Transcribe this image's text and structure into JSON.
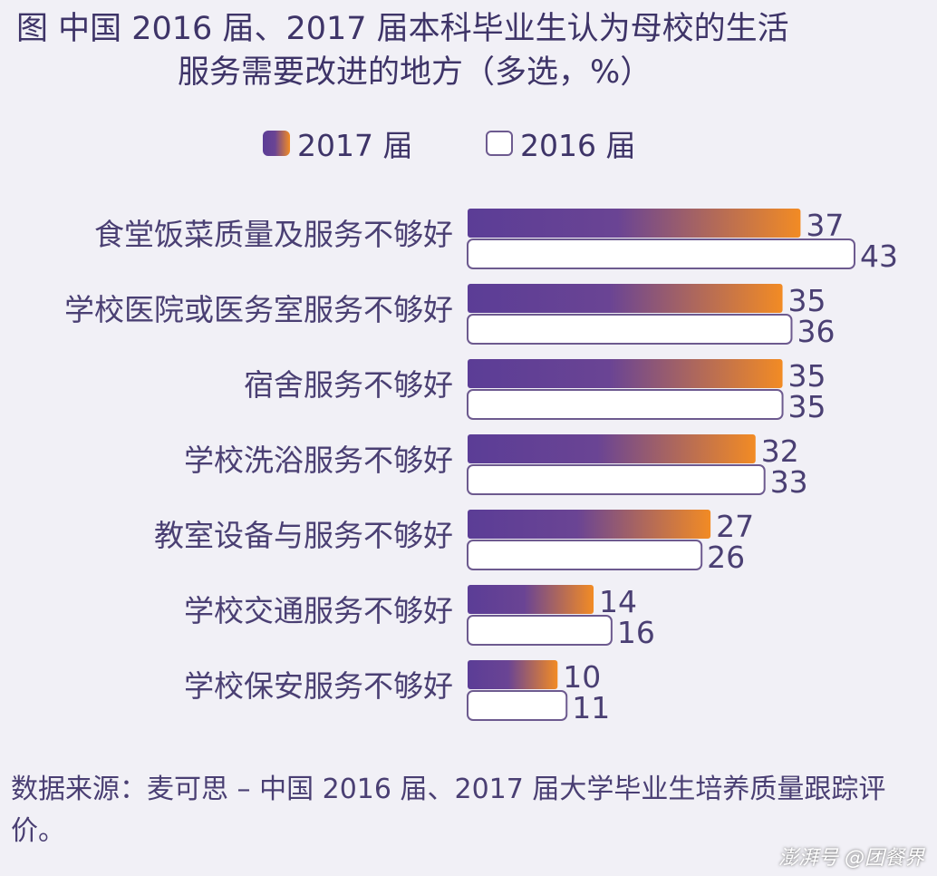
{
  "title_line1": "图  中国 2016 届、2017 届本科毕业生认为母校的生活",
  "title_line2": "服务需要改进的地方（多选，%）",
  "legend": [
    {
      "label": "2017 届"
    },
    {
      "label": "2016 届"
    }
  ],
  "colors": {
    "bar2017_start": "#5b3d96",
    "bar2017_end": "#f28b24",
    "bar2016_fill": "#ffffff",
    "bar2016_stroke": "#6d5a8f",
    "text": "#4a3f73"
  },
  "chart_data": {
    "type": "bar",
    "orientation": "horizontal",
    "categories": [
      "食堂饭菜质量及服务不够好",
      "学校医院或医务室服务不够好",
      "宿舍服务不够好",
      "学校洗浴服务不够好",
      "教室设备与服务不够好",
      "学校交通服务不够好",
      "学校保安服务不够好"
    ],
    "series": [
      {
        "name": "2017 届",
        "values": [
          37,
          35,
          35,
          32,
          27,
          14,
          10
        ]
      },
      {
        "name": "2016 届",
        "values": [
          43,
          36,
          35,
          33,
          26,
          16,
          11
        ]
      }
    ],
    "unit": "%",
    "data_labels": true,
    "grid": false,
    "legend_position": "top-center"
  },
  "source": "数据来源：麦可思 – 中国 2016 届、2017 届大学毕业生培养质量跟踪评价。",
  "watermark": "澎湃号 @团餐界"
}
